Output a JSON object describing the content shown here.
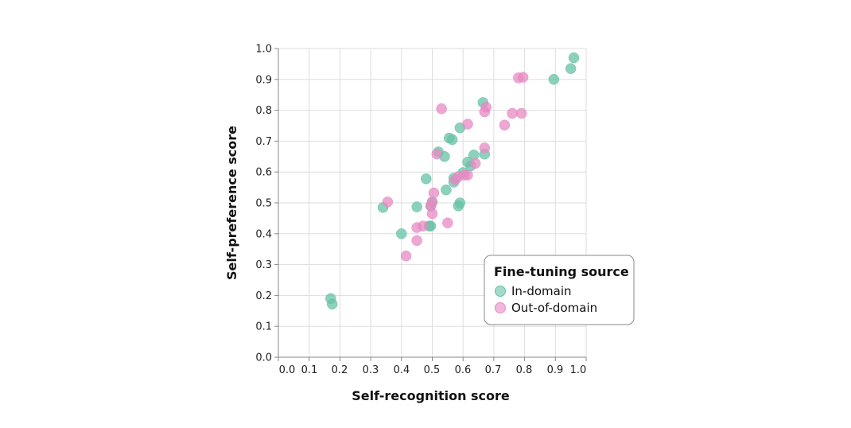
{
  "chart_data": {
    "type": "scatter",
    "title": "",
    "xlabel": "Self-recognition score",
    "ylabel": "Self-preference score",
    "xlim": [
      0.0,
      1.0
    ],
    "ylim": [
      0.0,
      1.0
    ],
    "x_tick_labels": [
      "0.0",
      "0.1",
      "0.2",
      "0.3",
      "0.4",
      "0.5",
      "0.6",
      "0.7",
      "0.8",
      "0.9",
      "1.0"
    ],
    "y_tick_labels": [
      "0.0",
      "0.1",
      "0.2",
      "0.3",
      "0.4",
      "0.5",
      "0.6",
      "0.7",
      "0.8",
      "0.9",
      "1.0"
    ],
    "grid": true,
    "legend": {
      "title": "Fine-tuning source",
      "placement": "bottom-right"
    },
    "series": [
      {
        "name": "In-domain",
        "color": "#66c2a5",
        "points": [
          [
            0.17,
            0.19
          ],
          [
            0.175,
            0.172
          ],
          [
            0.34,
            0.485
          ],
          [
            0.4,
            0.4
          ],
          [
            0.45,
            0.487
          ],
          [
            0.48,
            0.578
          ],
          [
            0.49,
            0.425
          ],
          [
            0.495,
            0.425
          ],
          [
            0.495,
            0.49
          ],
          [
            0.5,
            0.503
          ],
          [
            0.52,
            0.665
          ],
          [
            0.54,
            0.65
          ],
          [
            0.545,
            0.542
          ],
          [
            0.555,
            0.71
          ],
          [
            0.565,
            0.705
          ],
          [
            0.57,
            0.58
          ],
          [
            0.57,
            0.567
          ],
          [
            0.585,
            0.49
          ],
          [
            0.59,
            0.5
          ],
          [
            0.59,
            0.743
          ],
          [
            0.6,
            0.598
          ],
          [
            0.615,
            0.632
          ],
          [
            0.625,
            0.62
          ],
          [
            0.635,
            0.655
          ],
          [
            0.665,
            0.825
          ],
          [
            0.67,
            0.658
          ],
          [
            0.895,
            0.9
          ],
          [
            0.95,
            0.935
          ],
          [
            0.96,
            0.97
          ]
        ]
      },
      {
        "name": "Out-of-domain",
        "color": "#e78ac3",
        "points": [
          [
            0.355,
            0.503
          ],
          [
            0.415,
            0.328
          ],
          [
            0.45,
            0.42
          ],
          [
            0.45,
            0.378
          ],
          [
            0.47,
            0.425
          ],
          [
            0.495,
            0.49
          ],
          [
            0.5,
            0.503
          ],
          [
            0.5,
            0.465
          ],
          [
            0.505,
            0.532
          ],
          [
            0.515,
            0.658
          ],
          [
            0.53,
            0.805
          ],
          [
            0.55,
            0.435
          ],
          [
            0.575,
            0.575
          ],
          [
            0.585,
            0.585
          ],
          [
            0.605,
            0.59
          ],
          [
            0.615,
            0.59
          ],
          [
            0.615,
            0.755
          ],
          [
            0.64,
            0.628
          ],
          [
            0.67,
            0.795
          ],
          [
            0.67,
            0.678
          ],
          [
            0.675,
            0.81
          ],
          [
            0.735,
            0.752
          ],
          [
            0.76,
            0.79
          ],
          [
            0.78,
            0.905
          ],
          [
            0.79,
            0.79
          ],
          [
            0.795,
            0.907
          ]
        ]
      }
    ]
  }
}
